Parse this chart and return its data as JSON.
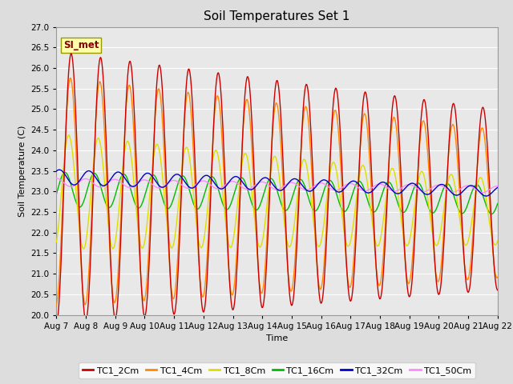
{
  "title": "Soil Temperatures Set 1",
  "xlabel": "Time",
  "ylabel": "Soil Temperature (C)",
  "ylim": [
    20.0,
    27.0
  ],
  "yticks": [
    20.0,
    20.5,
    21.0,
    21.5,
    22.0,
    22.5,
    23.0,
    23.5,
    24.0,
    24.5,
    25.0,
    25.5,
    26.0,
    26.5,
    27.0
  ],
  "xtick_labels": [
    "Aug 7",
    "Aug 8",
    "Aug 9",
    "Aug 10",
    "Aug 11",
    "Aug 12",
    "Aug 13",
    "Aug 14",
    "Aug 15",
    "Aug 16",
    "Aug 17",
    "Aug 18",
    "Aug 19",
    "Aug 20",
    "Aug 21",
    "Aug 22"
  ],
  "series": {
    "TC1_2Cm": {
      "color": "#CC0000",
      "lw": 1.0
    },
    "TC1_4Cm": {
      "color": "#FF8800",
      "lw": 1.0
    },
    "TC1_8Cm": {
      "color": "#DDDD00",
      "lw": 1.0
    },
    "TC1_16Cm": {
      "color": "#00BB00",
      "lw": 1.0
    },
    "TC1_32Cm": {
      "color": "#0000CC",
      "lw": 1.0
    },
    "TC1_50Cm": {
      "color": "#FF88FF",
      "lw": 1.0
    }
  },
  "annotation_text": "SI_met",
  "annotation_color": "#880000",
  "annotation_bg": "#FFFFAA",
  "background_color": "#DDDDDD",
  "plot_bg": "#E8E8E8",
  "grid_color": "#FFFFFF",
  "title_fontsize": 11,
  "axis_fontsize": 8,
  "tick_fontsize": 7.5
}
